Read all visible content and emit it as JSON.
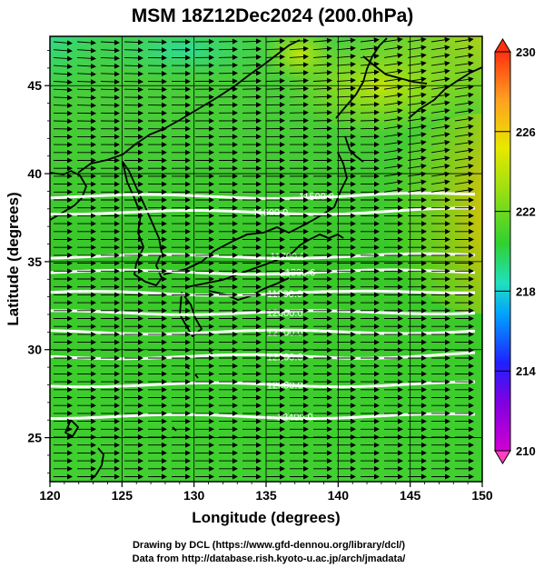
{
  "title": "MSM 18Z12Dec2024 (200.0hPa)",
  "xlabel": "Longitude (degrees)",
  "ylabel": "Latitude  (degrees)",
  "x_ticks": [
    "120",
    "125",
    "130",
    "135",
    "140",
    "145",
    "150"
  ],
  "y_ticks": [
    "25",
    "30",
    "35",
    "40",
    "45"
  ],
  "colorbar": {
    "ticks": [
      "210",
      "214",
      "218",
      "222",
      "226",
      "230"
    ],
    "min": 210,
    "max": 230,
    "colors": [
      "#d000d0",
      "#2020ff",
      "#00b0ff",
      "#20e0c0",
      "#30d030",
      "#a0e010",
      "#e8e800",
      "#ffa020",
      "#ff3010"
    ]
  },
  "map": {
    "lon_range": [
      120,
      150
    ],
    "lat_range": [
      22.5,
      47.8
    ],
    "field": "temperature (K), shaded",
    "vectors": "wind, predominantly westerly"
  },
  "contours": [
    {
      "label": "11600.0",
      "lat": 37.8,
      "label_lon": 135.3
    },
    {
      "label": "11700.0",
      "lat": 35.3,
      "label_lon": 136.5
    },
    {
      "label": "11800.0",
      "lat": 34.4,
      "label_lon": 137.2
    },
    {
      "label": "11900.0",
      "lat": 33.2,
      "label_lon": 136.3
    },
    {
      "label": "12000.0",
      "lat": 32.1,
      "label_lon": 136.3
    },
    {
      "label": "12100.0",
      "lat": 31.0,
      "label_lon": 136.3
    },
    {
      "label": "12200.0",
      "lat": 29.6,
      "label_lon": 136.3
    },
    {
      "label": "12300.0",
      "lat": 28.0,
      "label_lon": 136.3
    },
    {
      "label": "12400.0",
      "lat": 26.2,
      "label_lon": 137.0
    },
    {
      "label": "11500.0",
      "lat": 38.7,
      "label_lon": 138.5
    }
  ],
  "credits": {
    "line1": "Drawing by DCL (https://www.gfd-dennou.org/library/dcl/)",
    "line2": "Data from http://database.rish.kyoto-u.ac.jp/arch/jmadata/"
  }
}
